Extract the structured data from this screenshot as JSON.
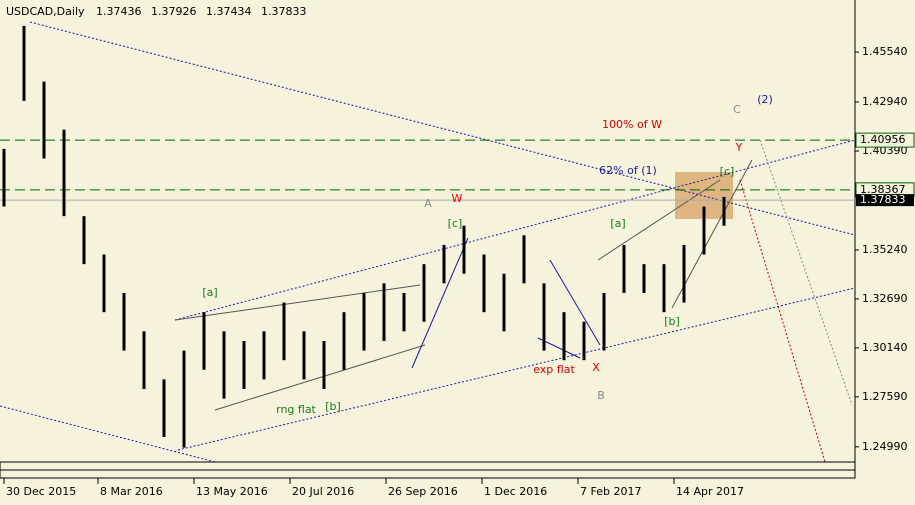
{
  "chart_data": {
    "type": "ohlc",
    "title": "USDCAD,Daily",
    "header_values": [
      1.37436,
      1.37926,
      1.37434,
      1.37833
    ],
    "x": [
      0,
      10,
      20,
      30,
      40,
      50,
      60,
      70,
      80,
      90,
      100,
      110,
      120,
      130,
      140,
      150,
      160,
      170,
      180,
      190,
      200,
      210,
      220,
      230,
      240,
      250,
      260,
      270,
      280,
      290,
      300,
      310,
      320,
      330,
      340,
      350,
      360
    ],
    "high": [
      1.405,
      1.469,
      1.44,
      1.415,
      1.37,
      1.35,
      1.33,
      1.31,
      1.285,
      1.3,
      1.32,
      1.31,
      1.305,
      1.31,
      1.325,
      1.31,
      1.305,
      1.32,
      1.33,
      1.335,
      1.33,
      1.345,
      1.355,
      1.365,
      1.35,
      1.34,
      1.36,
      1.335,
      1.32,
      1.315,
      1.33,
      1.355,
      1.345,
      1.345,
      1.355,
      1.375,
      1.38
    ],
    "low": [
      1.375,
      1.43,
      1.4,
      1.37,
      1.345,
      1.32,
      1.3,
      1.28,
      1.255,
      1.2495,
      1.29,
      1.275,
      1.28,
      1.285,
      1.295,
      1.285,
      1.28,
      1.29,
      1.3,
      1.305,
      1.31,
      1.315,
      1.335,
      1.34,
      1.32,
      1.31,
      1.335,
      1.3,
      1.295,
      1.295,
      1.3,
      1.33,
      1.33,
      1.32,
      1.325,
      1.35,
      1.365
    ],
    "color": "#000000",
    "xlim": [
      -2,
      425.5
    ],
    "xticks": [
      {
        "value": 0,
        "label": "30 Dec 2015"
      },
      {
        "value": 47,
        "label": "8 Mar 2016"
      },
      {
        "value": 95,
        "label": "13 May 2016"
      },
      {
        "value": 143,
        "label": "20 Jul 2016"
      },
      {
        "value": 191,
        "label": "26 Sep 2016"
      },
      {
        "value": 239,
        "label": "1 Dec 2016"
      },
      {
        "value": 287,
        "label": "7 Feb 2017"
      },
      {
        "value": 335,
        "label": "14 Apr 2017"
      }
    ],
    "ylim": [
      1.242,
      1.4825
    ],
    "yticks": [
      {
        "value": 1.4554,
        "label": "1.45540"
      },
      {
        "value": 1.4294,
        "label": "1.42940"
      },
      {
        "value": 1.4039,
        "label": "1.40390"
      },
      {
        "value": 1.3524,
        "label": "1.35240"
      },
      {
        "value": 1.3269,
        "label": "1.32690"
      },
      {
        "value": 1.3014,
        "label": "1.30140"
      },
      {
        "value": 1.2759,
        "label": "1.27590"
      },
      {
        "value": 1.2499,
        "label": "1.24990"
      }
    ],
    "levels": [
      {
        "value": 1.40956,
        "color": "#006400"
      },
      {
        "value": 1.38367,
        "color": "#006400"
      }
    ],
    "current_price": 1.37833,
    "annotations": [
      "[a]",
      "[b]",
      "rng flat",
      "[c]",
      "A",
      "W",
      "[a]",
      "[b]",
      "[c]",
      "62% of (1)",
      "100% of W",
      "C",
      "(2)",
      "Y",
      "X",
      "B",
      "exp flat"
    ]
  }
}
